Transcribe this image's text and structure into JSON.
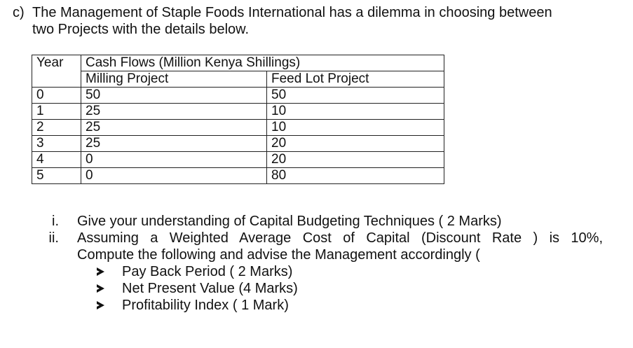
{
  "intro": {
    "label": "c)",
    "line1": "The Management of Staple Foods International has a dilemma in choosing between",
    "line2": "two Projects with the details below."
  },
  "table": {
    "year_header": "Year",
    "group_header": "Cash Flows (Million Kenya Shillings)",
    "milling_header": "Milling Project",
    "feedlot_header": "Feed Lot Project",
    "rows": [
      {
        "year": "0",
        "milling": "50",
        "feedlot": "50"
      },
      {
        "year": "1",
        "milling": "25",
        "feedlot": "10"
      },
      {
        "year": "2",
        "milling": "25",
        "feedlot": "10"
      },
      {
        "year": "3",
        "milling": "25",
        "feedlot": "20"
      },
      {
        "year": "4",
        "milling": "0",
        "feedlot": "20"
      },
      {
        "year": "5",
        "milling": "0",
        "feedlot": "80"
      }
    ]
  },
  "questions": {
    "q1_num": "i.",
    "q1_text": "Give your understanding of Capital Budgeting Techniques ( 2 Marks)",
    "q2_num": "ii.",
    "q2_line1": "Assuming a Weighted Average Cost of Capital (Discount Rate ) is 10%,",
    "q2_line2": "Compute the following and advise the Management accordingly (",
    "bullets": [
      "Pay Back Period ( 2 Marks)",
      "Net Present Value  (4 Marks)",
      "Profitability Index  ( 1 Mark)"
    ]
  }
}
